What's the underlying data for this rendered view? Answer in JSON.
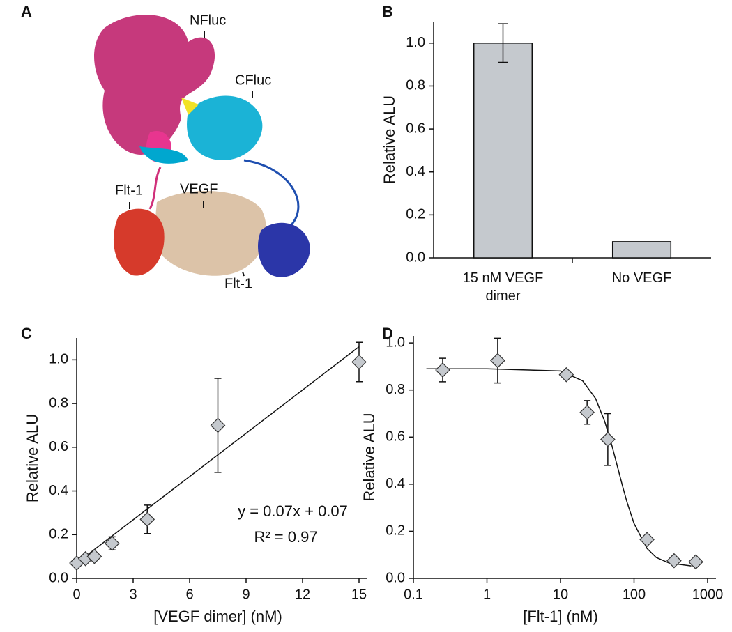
{
  "structure": {
    "panel": "A",
    "labels": [
      "NFluc",
      "CFluc",
      "Flt-1",
      "VEGF",
      "Flt-1"
    ]
  },
  "chart_data": [
    {
      "type": "bar",
      "panel": "B",
      "ylabel": "Relative ALU",
      "categories": [
        "15 nM VEGF dimer",
        "No VEGF"
      ],
      "values": [
        1.0,
        0.075
      ],
      "errors": [
        0.09,
        null
      ],
      "color": "#c5c9ce",
      "ylim": [
        0,
        1.1
      ],
      "yticks": [
        {
          "value": 0,
          "label": "0.0"
        },
        {
          "value": 0.2,
          "label": "0.2"
        },
        {
          "value": 0.4,
          "label": "0.4"
        },
        {
          "value": 0.6,
          "label": "0.6"
        },
        {
          "value": 0.8,
          "label": "0.8"
        },
        {
          "value": 1.0,
          "label": "1.0"
        }
      ]
    },
    {
      "type": "scatter",
      "panel": "C",
      "xlabel": "[VEGF dimer] (nM)",
      "ylabel": "Relative ALU",
      "x": [
        0,
        0.47,
        0.94,
        1.88,
        3.75,
        7.5,
        15
      ],
      "values": [
        0.07,
        0.09,
        0.1,
        0.16,
        0.27,
        0.7,
        0.99
      ],
      "errors": [
        0.01,
        0.01,
        0.01,
        0.03,
        0.065,
        0.215,
        0.09
      ],
      "fit": {
        "x": [
          0,
          15
        ],
        "values": [
          0.07,
          1.06
        ]
      },
      "annotations": [
        "y = 0.07x + 0.07",
        "R² = 0.97"
      ],
      "color": "#c5c9ce",
      "xlim": [
        0,
        15
      ],
      "xticks": [
        0,
        3,
        6,
        9,
        12,
        15
      ],
      "ylim": [
        0,
        1.1
      ],
      "yticks": [
        {
          "value": 0,
          "label": "0.0"
        },
        {
          "value": 0.2,
          "label": "0.2"
        },
        {
          "value": 0.4,
          "label": "0.4"
        },
        {
          "value": 0.6,
          "label": "0.6"
        },
        {
          "value": 0.8,
          "label": "0.8"
        },
        {
          "value": 1.0,
          "label": "1.0"
        }
      ]
    },
    {
      "type": "scatter",
      "panel": "D",
      "xlabel": "[Flt-1] (nM)",
      "ylabel": "Relative ALU",
      "xscale": "log",
      "x": [
        0.25,
        1.4,
        12,
        23,
        44,
        150,
        350,
        690
      ],
      "values": [
        0.885,
        0.925,
        0.865,
        0.705,
        0.59,
        0.165,
        0.075,
        0.07
      ],
      "errors": [
        0.05,
        0.095,
        0.01,
        0.05,
        0.11,
        0.01,
        0.01,
        0.01
      ],
      "fit": {
        "x": [
          0.15,
          1,
          10,
          20,
          30,
          40,
          50,
          60,
          70,
          80,
          100,
          150,
          200,
          300,
          600
        ],
        "values": [
          0.89,
          0.89,
          0.881,
          0.839,
          0.764,
          0.666,
          0.564,
          0.47,
          0.39,
          0.325,
          0.233,
          0.127,
          0.089,
          0.065,
          0.053
        ]
      },
      "color": "#c5c9ce",
      "xlim": [
        0.1,
        1000
      ],
      "xticks": [
        0.1,
        1,
        10,
        100,
        1000
      ],
      "ylim": [
        0,
        1.03
      ],
      "yticks": [
        {
          "value": 0,
          "label": "0.0"
        },
        {
          "value": 0.2,
          "label": "0.2"
        },
        {
          "value": 0.4,
          "label": "0.4"
        },
        {
          "value": 0.6,
          "label": "0.6"
        },
        {
          "value": 0.8,
          "label": "0.8"
        },
        {
          "value": 1.0,
          "label": "1.0"
        }
      ]
    }
  ]
}
